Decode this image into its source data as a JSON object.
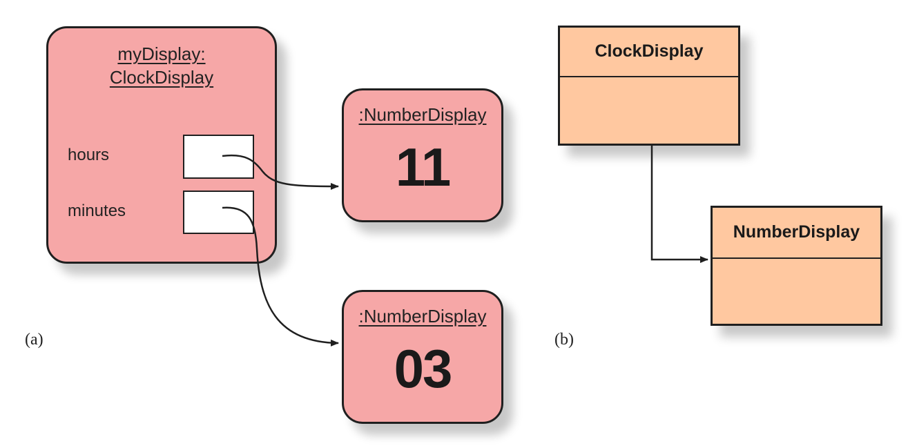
{
  "object_diagram": {
    "caption": "(a)",
    "clock_object": {
      "title_line1": "myDisplay:",
      "title_line2": "ClockDisplay",
      "fields": [
        {
          "label": "hours"
        },
        {
          "label": "minutes"
        }
      ]
    },
    "hours_object": {
      "title": ":NumberDisplay",
      "value": "11"
    },
    "minutes_object": {
      "title": ":NumberDisplay",
      "value": "03"
    }
  },
  "class_diagram": {
    "caption": "(b)",
    "classes": [
      {
        "name": "ClockDisplay"
      },
      {
        "name": "NumberDisplay"
      }
    ]
  },
  "colors": {
    "object_fill": "#f6a7a7",
    "class_fill": "#ffc8a0",
    "outline": "#1f1f1f"
  }
}
